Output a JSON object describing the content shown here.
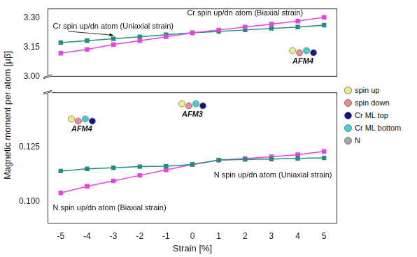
{
  "chart_data": [
    {
      "type": "line",
      "ylabel": "Magnetic moment per atom [μβ]",
      "x": [
        -5,
        -4,
        -3,
        -2,
        -1,
        0,
        1,
        2,
        3,
        4,
        5
      ],
      "xlim": [
        -5.5,
        5.5
      ],
      "xticks": [
        -5,
        -4,
        -3,
        -2,
        -1,
        0,
        1,
        2,
        3,
        4,
        5
      ],
      "ylim": [
        3.0,
        3.35
      ],
      "yticks": [
        {
          "value": 3.0,
          "label": "3.00"
        },
        3.15,
        {
          "value": 3.3,
          "label": "3.30"
        }
      ],
      "tick_labels": "y",
      "grid": false,
      "series": [
        {
          "name": "Cr spin up/dn atom (Biaxial strain)",
          "color": "#ee3ee8",
          "marker": "square",
          "line_style": "solid",
          "values": [
            3.12,
            3.14,
            3.165,
            3.185,
            3.205,
            3.225,
            3.24,
            3.255,
            3.27,
            3.285,
            3.305
          ]
        },
        {
          "name": "Cr spin up/dn atom (Uniaxial strain)",
          "color": "#1f8f80",
          "marker": "square",
          "line_style": "solid",
          "values": [
            3.175,
            3.185,
            3.195,
            3.205,
            3.215,
            3.225,
            3.232,
            3.24,
            3.248,
            3.255,
            3.265
          ]
        }
      ],
      "annotations": [
        "AFM4"
      ]
    },
    {
      "type": "line",
      "xlabel": "Strain [%]",
      "x": [
        -5,
        -4,
        -3,
        -2,
        -1,
        0,
        1,
        2,
        3,
        4,
        5
      ],
      "xlim": [
        -5.5,
        5.5
      ],
      "xticks": [
        -5,
        -4,
        -3,
        -2,
        -1,
        0,
        1,
        2,
        3,
        4,
        5
      ],
      "ylim": [
        0.09,
        0.15
      ],
      "yticks": [
        {
          "value": 0.1,
          "label": "0.100"
        },
        0.125
      ],
      "grid": false,
      "series": [
        {
          "name": "N spin up/dn atom (Uniaxial strain)",
          "color": "#1f8f80",
          "marker": "square",
          "line_style": "solid",
          "values": [
            0.114,
            0.115,
            0.1155,
            0.116,
            0.1162,
            0.117,
            0.119,
            0.1193,
            0.1195,
            0.1198,
            0.12
          ]
        },
        {
          "name": "N spin up/dn atom (Biaxial strain)",
          "color": "#ee3ee8",
          "marker": "square",
          "line_style": "solid",
          "values": [
            0.104,
            0.107,
            0.1095,
            0.112,
            0.1145,
            0.117,
            0.119,
            0.1197,
            0.1205,
            0.1215,
            0.123
          ]
        }
      ],
      "annotations": [
        "AFM4",
        "AFM3"
      ]
    }
  ],
  "key": [
    {
      "label": "spin up",
      "color": "#f3ef7e"
    },
    {
      "label": "spin down",
      "color": "#f08a8a"
    },
    {
      "label": "Cr ML top",
      "color": "#10108c"
    },
    {
      "label": "Cr ML bottom",
      "color": "#34d4d4"
    },
    {
      "label": "N",
      "color": "#a4a4b4"
    }
  ]
}
